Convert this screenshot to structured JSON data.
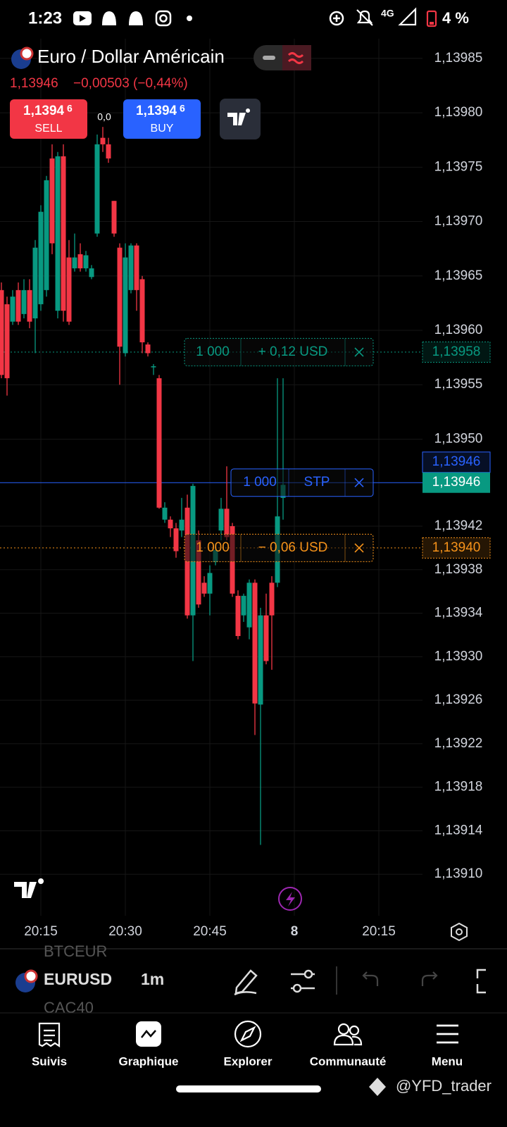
{
  "status_bar": {
    "time": "1:23",
    "network": "4G",
    "battery": "4 %"
  },
  "header": {
    "symbol": "Euro / Dollar Américain",
    "price": "1,13946",
    "change": "−0,00503 (−0,44%)",
    "sell": {
      "price": "1,1394",
      "pip": "6",
      "label": "SELL"
    },
    "buy": {
      "price": "1,1394",
      "pip": "6",
      "label": "BUY"
    },
    "spread": "0,0"
  },
  "chart_data": {
    "type": "candlestick",
    "up_color": "#089981",
    "down_color": "#f23645",
    "grid": true,
    "open": [
      1.139637,
      1.139624,
      1.139608,
      1.139637,
      1.139615,
      1.139637,
      1.139611,
      1.139624,
      1.139637,
      1.139758,
      1.139618,
      1.13976,
      1.139667,
      1.139657,
      1.13967,
      1.139657,
      1.139649,
      1.139689,
      1.139777,
      1.139771,
      1.139719,
      1.139676,
      1.139579,
      1.139637,
      1.139678,
      1.139647,
      1.139587,
      1.139566,
      1.139556,
      1.139426,
      1.139426,
      1.139418,
      1.139416,
      1.139437,
      1.139338,
      1.139407,
      1.139368,
      1.139358,
      1.139387,
      1.139416,
      1.139436,
      1.13942,
      1.139356,
      1.139338,
      1.139327,
      1.139368,
      1.139256,
      1.139338,
      1.139368,
      1.139368,
      1.139446
    ],
    "high": [
      1.139644,
      1.139631,
      1.139637,
      1.139644,
      1.139647,
      1.139647,
      1.139683,
      1.139715,
      1.139742,
      1.139771,
      1.139764,
      1.139771,
      1.139683,
      1.139689,
      1.13968,
      1.139673,
      1.13966,
      1.13978,
      1.139787,
      1.139777,
      1.139719,
      1.13968,
      1.13968,
      1.13968,
      1.13968,
      1.13965,
      1.139589,
      1.139569,
      1.139559,
      1.139442,
      1.139429,
      1.139423,
      1.139446,
      1.139449,
      1.139459,
      1.139416,
      1.139374,
      1.139384,
      1.139404,
      1.139446,
      1.139475,
      1.139423,
      1.139361,
      1.139358,
      1.139371,
      1.139371,
      1.139345,
      1.139358,
      1.139374,
      1.139556,
      1.139556
    ],
    "low": [
      1.139556,
      1.13954,
      1.139605,
      1.139605,
      1.139611,
      1.139602,
      1.139579,
      1.139618,
      1.139631,
      1.13967,
      1.139611,
      1.139608,
      1.139605,
      1.139654,
      1.139654,
      1.139654,
      1.139647,
      1.139686,
      1.139764,
      1.139754,
      1.139686,
      1.13955,
      1.139576,
      1.139634,
      1.139618,
      1.139579,
      1.139576,
      1.139559,
      1.139436,
      1.139423,
      1.13941,
      1.139391,
      1.13941,
      1.139335,
      1.139296,
      1.139345,
      1.139355,
      1.139338,
      1.139384,
      1.139407,
      1.139407,
      1.139355,
      1.139316,
      1.139332,
      1.139316,
      1.139228,
      1.139127,
      1.139293,
      1.139288,
      1.139364,
      1.139426
    ],
    "close": [
      1.139559,
      1.139556,
      1.139631,
      1.139608,
      1.139637,
      1.139608,
      1.139676,
      1.139709,
      1.139738,
      1.13968,
      1.13976,
      1.139618,
      1.139608,
      1.139667,
      1.139657,
      1.139669,
      1.139657,
      1.139771,
      1.139771,
      1.139758,
      1.139689,
      1.139585,
      1.139667,
      1.139678,
      1.139637,
      1.139589,
      1.139579,
      1.139567,
      1.139437,
      1.139437,
      1.139418,
      1.139397,
      1.139426,
      1.139338,
      1.139457,
      1.139348,
      1.139358,
      1.139377,
      1.139398,
      1.139436,
      1.13941,
      1.139358,
      1.139319,
      1.139356,
      1.139368,
      1.139257,
      1.139338,
      1.139296,
      1.139338,
      1.139429,
      1.139458
    ],
    "ylim": [
      1.13906,
      1.13987
    ],
    "yticks": [
      {
        "value": 1.13985,
        "label": "1,13985"
      },
      {
        "value": 1.1398,
        "label": "1,13980"
      },
      {
        "value": 1.13975,
        "label": "1,13975"
      },
      {
        "value": 1.1397,
        "label": "1,13970"
      },
      {
        "value": 1.13965,
        "label": "1,13965"
      },
      {
        "value": 1.1396,
        "label": "1,13960"
      },
      {
        "value": 1.13955,
        "label": "1,13955"
      },
      {
        "value": 1.1395,
        "label": "1,13950"
      },
      {
        "value": 1.13942,
        "label": "1,13942"
      },
      {
        "value": 1.13938,
        "label": "1,13938"
      },
      {
        "value": 1.13934,
        "label": "1,13934"
      },
      {
        "value": 1.1393,
        "label": "1,13930"
      },
      {
        "value": 1.13926,
        "label": "1,13926"
      },
      {
        "value": 1.13922,
        "label": "1,13922"
      },
      {
        "value": 1.13918,
        "label": "1,13918"
      },
      {
        "value": 1.13914,
        "label": "1,13914"
      },
      {
        "value": 1.1391,
        "label": "1,13910"
      }
    ],
    "xlim": [
      -0.25,
      74.75
    ],
    "xticks": [
      {
        "value": 7,
        "label": "20:15"
      },
      {
        "value": 22,
        "label": "20:30"
      },
      {
        "value": 37,
        "label": "20:45"
      },
      {
        "value": 52,
        "label": "8"
      },
      {
        "value": 67,
        "label": "20:15"
      }
    ],
    "price_levels": [
      {
        "value": 1.13958,
        "label": "1,13958",
        "color": "#089981",
        "style": "outline",
        "line": "dotted",
        "quantity": "1 000",
        "result": "+ 0,12 USD"
      },
      {
        "value": 1.13946,
        "label": "1,13946",
        "color": "#2962ff",
        "style": "outline",
        "line": "solid",
        "quantity": "1 000",
        "order_type": "STP"
      },
      {
        "value": 1.13946,
        "label": "1,13946",
        "color": "#089981",
        "style": "filled"
      },
      {
        "value": 1.1394,
        "label": "1,13940",
        "color": "#f7931a",
        "style": "outline",
        "line": "dotted",
        "quantity": "1 000",
        "result": "− 0,06 USD"
      }
    ]
  },
  "toolbar": {
    "symbols": [
      "BTCEUR",
      "EURUSD",
      "CAC40"
    ],
    "interval": "1m"
  },
  "nav": [
    "Suivis",
    "Graphique",
    "Explorer",
    "Communauté",
    "Menu"
  ],
  "watermark": "@YFD_trader"
}
